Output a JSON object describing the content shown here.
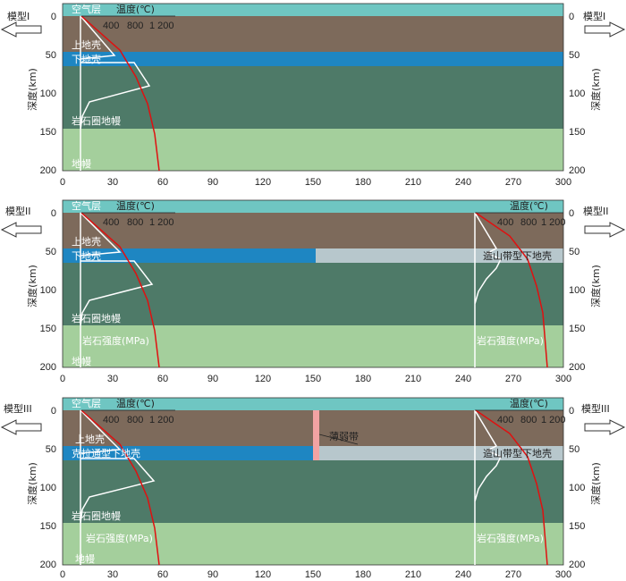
{
  "colors": {
    "air": "#6fc6c2",
    "upper_crust": "#7d6a5b",
    "lower_crust": "#1e86c2",
    "orogen_lower_crust": "#b7c7cc",
    "lithospheric_mantle": "#4e7a68",
    "mantle": "#a4cf9c",
    "weak_zone": "#f2a3a3",
    "temperature_curve": "#e01010",
    "strength_curve": "#ffffff"
  },
  "x_axis": {
    "ticks": [
      "0",
      "30",
      "60",
      "90",
      "120",
      "150",
      "180",
      "210",
      "240",
      "270",
      "300"
    ]
  },
  "y_axis": {
    "label": "深度(km)",
    "ticks": [
      "0",
      "50",
      "100",
      "150",
      "200"
    ]
  },
  "temperature_axis": {
    "label": "温度(℃)",
    "ticks": [
      "400",
      "800",
      "1 200"
    ]
  },
  "labels": {
    "air": "空气层",
    "upper_crust": "上地壳",
    "lower_crust": "下地壳",
    "lithospheric_mantle": "岩石圈地幔",
    "mantle": "地幔",
    "strength": "岩石强度(MPa)",
    "orogen_lower_crust": "造山带型下地壳",
    "lower_crust_III": "克拉通型下地壳",
    "weak_zone": "薄弱带"
  },
  "panels": [
    {
      "model": "模型I",
      "orogen": false,
      "weak_zone": false
    },
    {
      "model": "模型II",
      "orogen": true,
      "weak_zone": false
    },
    {
      "model": "模型III",
      "orogen": true,
      "weak_zone": true
    }
  ]
}
